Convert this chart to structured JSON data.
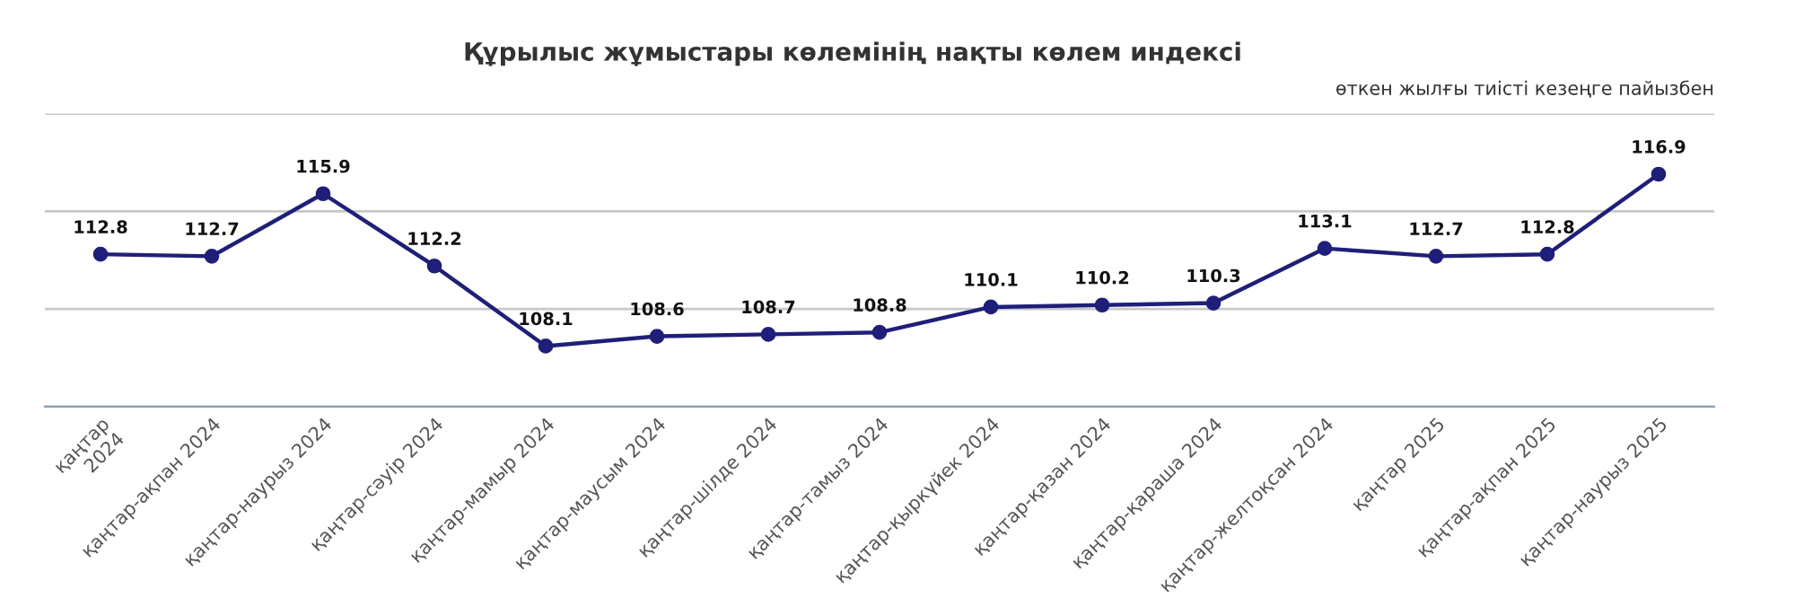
{
  "chart_data": {
    "type": "line",
    "title": "Құрылыс жұмыстары көлемінің нақты көлем индексі",
    "subtitle": "өткен жылғы тиісті кезеңге пайызбен",
    "categories": [
      "қаңтар\n2024",
      "қаңтар-ақпан 2024",
      "қаңтар-наурыз 2024",
      "қаңтар-сәуір 2024",
      "қаңтар-мамыр 2024",
      "қаңтар-маусым 2024",
      "қаңтар-шілде 2024",
      "қаңтар-тамыз 2024",
      "қаңтар-қыркүйек 2024",
      "қаңтар-қазан 2024",
      "қаңтар-қараша 2024",
      "қаңтар-желтоқсан 2024",
      "қаңтар 2025",
      "қаңтар-ақпан 2025",
      "қаңтар-наурыз 2025"
    ],
    "series": [
      {
        "color": "#1f1f7a",
        "values": [
          112.8,
          112.7,
          115.9,
          112.2,
          108.1,
          108.6,
          108.7,
          108.8,
          110.1,
          110.2,
          110.3,
          113.1,
          112.7,
          112.8,
          116.9
        ]
      }
    ],
    "ylim": [
      105,
      120
    ],
    "yticks": [
      {
        "value": 105,
        "label": null
      },
      {
        "value": 110,
        "label": null
      },
      {
        "value": 115,
        "label": null
      },
      {
        "value": 120,
        "label": null
      }
    ],
    "tick_labels": "x",
    "grid": "y",
    "marker": "circle",
    "line_style": "solid",
    "data_labels": true
  }
}
